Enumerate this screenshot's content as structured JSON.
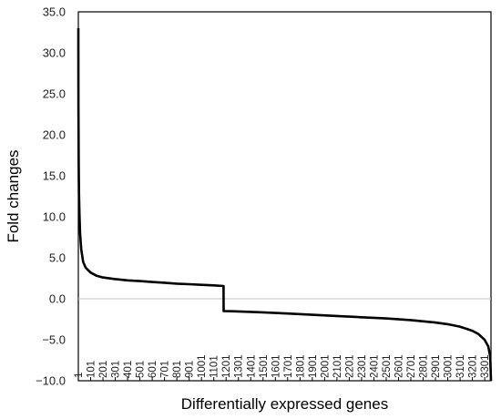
{
  "chart_data": {
    "type": "line",
    "title": "",
    "xlabel": "Differentially expressed genes",
    "ylabel": "Fold changes",
    "xlim": [
      1,
      3352
    ],
    "ylim": [
      -10.0,
      35.0
    ],
    "y_ticks": [
      "−10.0",
      "−5.0",
      "0.0",
      "5.0",
      "10.0",
      "15.0",
      "20.0",
      "25.0",
      "30.0",
      "35.0"
    ],
    "x_ticks": [
      "1",
      "101",
      "201",
      "301",
      "401",
      "501",
      "601",
      "701",
      "801",
      "901",
      "1001",
      "1101",
      "1201",
      "1301",
      "1401",
      "1501",
      "1601",
      "1701",
      "1801",
      "1901",
      "2001",
      "2101",
      "2201",
      "2301",
      "2401",
      "2501",
      "2601",
      "2701",
      "2801",
      "2901",
      "3001",
      "3101",
      "3201",
      "3301"
    ],
    "grid": false,
    "legend": "none",
    "line_color": "#000000",
    "zero_line_color": "#bfbfbf",
    "series": [
      {
        "values": [
          {
            "x": 1,
            "y": 33.0
          },
          {
            "x": 2,
            "y": 23.5
          },
          {
            "x": 4,
            "y": 16.5
          },
          {
            "x": 6,
            "y": 13.0
          },
          {
            "x": 10,
            "y": 10.5
          },
          {
            "x": 15,
            "y": 8.0
          },
          {
            "x": 25,
            "y": 6.0
          },
          {
            "x": 40,
            "y": 4.5
          },
          {
            "x": 60,
            "y": 3.8
          },
          {
            "x": 100,
            "y": 3.2
          },
          {
            "x": 150,
            "y": 2.8
          },
          {
            "x": 200,
            "y": 2.6
          },
          {
            "x": 300,
            "y": 2.4
          },
          {
            "x": 400,
            "y": 2.25
          },
          {
            "x": 500,
            "y": 2.15
          },
          {
            "x": 600,
            "y": 2.05
          },
          {
            "x": 700,
            "y": 1.95
          },
          {
            "x": 800,
            "y": 1.85
          },
          {
            "x": 900,
            "y": 1.78
          },
          {
            "x": 1000,
            "y": 1.7
          },
          {
            "x": 1100,
            "y": 1.63
          },
          {
            "x": 1180,
            "y": 1.55
          },
          {
            "x": 1181,
            "y": -1.5
          },
          {
            "x": 1300,
            "y": -1.55
          },
          {
            "x": 1500,
            "y": -1.65
          },
          {
            "x": 1700,
            "y": -1.8
          },
          {
            "x": 1900,
            "y": -1.95
          },
          {
            "x": 2100,
            "y": -2.1
          },
          {
            "x": 2300,
            "y": -2.25
          },
          {
            "x": 2500,
            "y": -2.4
          },
          {
            "x": 2700,
            "y": -2.6
          },
          {
            "x": 2900,
            "y": -2.9
          },
          {
            "x": 3000,
            "y": -3.1
          },
          {
            "x": 3100,
            "y": -3.4
          },
          {
            "x": 3200,
            "y": -3.9
          },
          {
            "x": 3250,
            "y": -4.3
          },
          {
            "x": 3300,
            "y": -5.0
          },
          {
            "x": 3330,
            "y": -5.8
          },
          {
            "x": 3345,
            "y": -7.0
          },
          {
            "x": 3352,
            "y": -10.0
          }
        ]
      }
    ]
  }
}
